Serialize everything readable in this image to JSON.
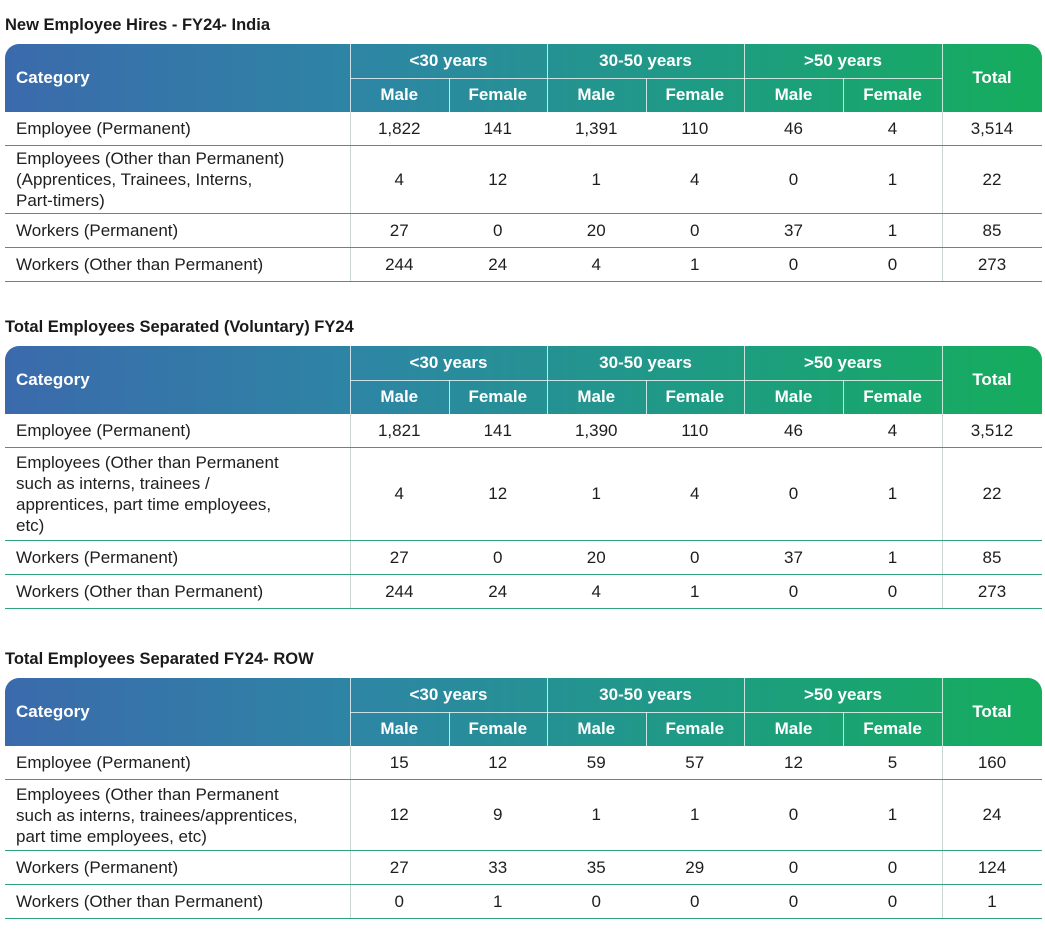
{
  "header": {
    "category": "Category",
    "age_groups": [
      "<30 years",
      "30-50 years",
      ">50 years"
    ],
    "genders": [
      "Male",
      "Female",
      "Male",
      "Female",
      "Male",
      "Female"
    ],
    "total": "Total"
  },
  "tables": [
    {
      "title": "New Employee Hires - FY24- India",
      "rows": [
        {
          "category": "Employee (Permanent)",
          "values": [
            "1,822",
            "141",
            "1,391",
            "110",
            "46",
            "4",
            "3,514"
          ]
        },
        {
          "category": "Employees (Other than Permanent)\n(Apprentices, Trainees, Interns,\nPart-timers)",
          "values": [
            "4",
            "12",
            "1",
            "4",
            "0",
            "1",
            "22"
          ]
        },
        {
          "category": "Workers (Permanent)",
          "values": [
            "27",
            "0",
            "20",
            "0",
            "37",
            "1",
            "85"
          ]
        },
        {
          "category": "Workers (Other than Permanent)",
          "values": [
            "244",
            "24",
            "4",
            "1",
            "0",
            "0",
            "273"
          ]
        }
      ]
    },
    {
      "title": "Total Employees Separated (Voluntary) FY24",
      "rows": [
        {
          "category": "Employee (Permanent)",
          "values": [
            "1,821",
            "141",
            "1,390",
            "110",
            "46",
            "4",
            "3,512"
          ]
        },
        {
          "category": "Employees (Other than Permanent\nsuch as interns, trainees /\napprentices, part time employees,\netc)",
          "values": [
            "4",
            "12",
            "1",
            "4",
            "0",
            "1",
            "22"
          ]
        },
        {
          "category": "Workers (Permanent)",
          "values": [
            "27",
            "0",
            "20",
            "0",
            "37",
            "1",
            "85"
          ]
        },
        {
          "category": "Workers (Other than Permanent)",
          "values": [
            "244",
            "24",
            "4",
            "1",
            "0",
            "0",
            "273"
          ]
        }
      ]
    },
    {
      "title": "Total Employees Separated FY24- ROW",
      "rows": [
        {
          "category": "Employee (Permanent)",
          "values": [
            "15",
            "12",
            "59",
            "57",
            "12",
            "5",
            "160"
          ]
        },
        {
          "category": "Employees (Other than Permanent\nsuch as interns, trainees/apprentices,\npart time employees, etc)",
          "values": [
            "12",
            "9",
            "1",
            "1",
            "0",
            "1",
            "24"
          ]
        },
        {
          "category": "Workers (Permanent)",
          "values": [
            "27",
            "33",
            "35",
            "29",
            "0",
            "0",
            "124"
          ]
        },
        {
          "category": "Workers (Other than Permanent)",
          "values": [
            "0",
            "1",
            "0",
            "0",
            "0",
            "0",
            "1"
          ]
        }
      ]
    }
  ]
}
